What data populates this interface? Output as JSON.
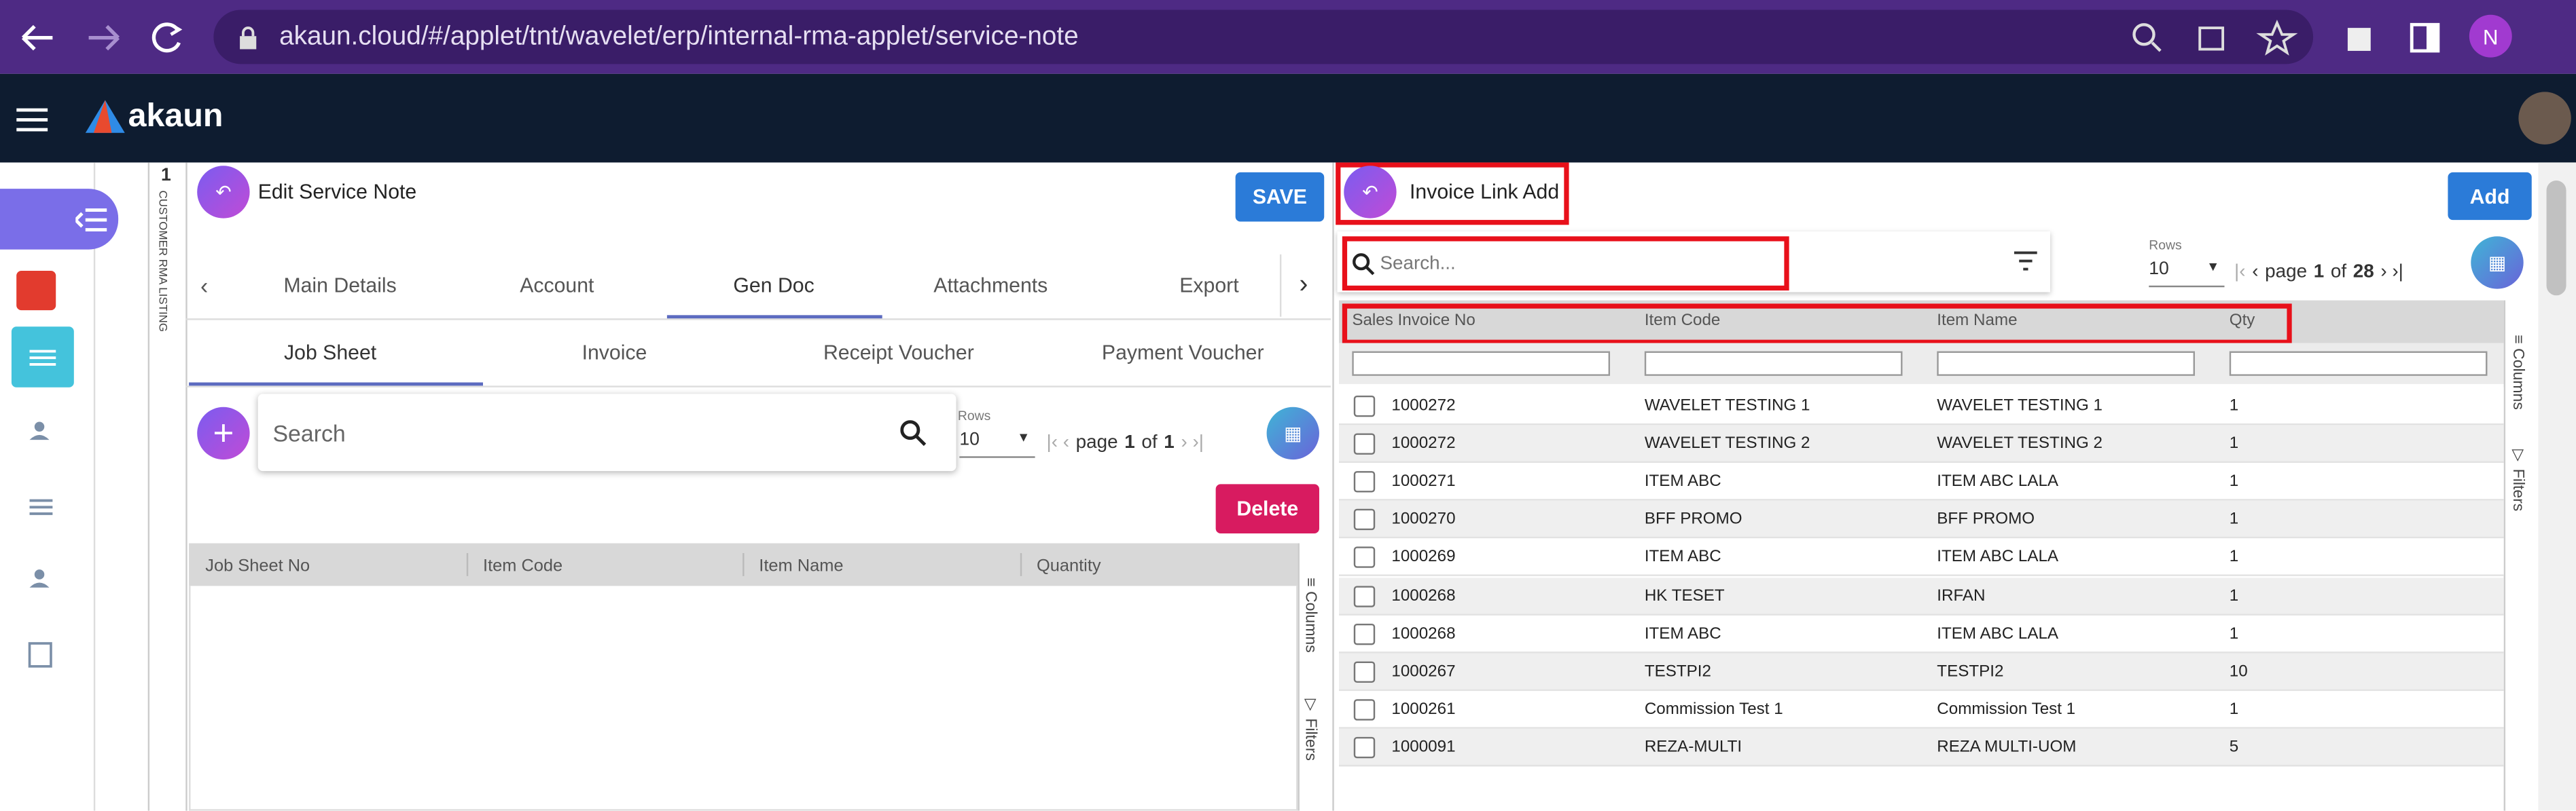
{
  "browser": {
    "url": "akaun.cloud/#/applet/tnt/wavelet/erp/internal-rma-applet/service-note",
    "avatar": "N"
  },
  "app": {
    "logo": "akaun"
  },
  "sidebar": {
    "counter": "1",
    "vertical_label": "CUSTOMER RMA LISTING"
  },
  "left_panel": {
    "title": "Edit Service Note",
    "save": "SAVE",
    "tabs": [
      "Main Details",
      "Account",
      "Gen Doc",
      "Attachments",
      "Export"
    ],
    "subtabs": [
      "Job Sheet",
      "Invoice",
      "Receipt Voucher",
      "Payment Voucher"
    ],
    "search": "Search",
    "rows_label": "Rows",
    "rows_value": "10",
    "pager": {
      "page": "page",
      "current": "1",
      "of": "of",
      "total": "1"
    },
    "delete": "Delete",
    "columns": [
      "Job Sheet No",
      "Item Code",
      "Item Name",
      "Quantity"
    ],
    "side_tabs": [
      "Columns",
      "Filters"
    ]
  },
  "right_panel": {
    "title": "Invoice Link Add",
    "add": "Add",
    "search": "Search...",
    "rows_label": "Rows",
    "rows_value": "10",
    "pager": {
      "page": "page",
      "current": "1",
      "of": "of",
      "total": "28"
    },
    "columns": [
      "Sales Invoice No",
      "Item Code",
      "Item Name",
      "Qty"
    ],
    "rows": [
      [
        "1000272",
        "WAVELET TESTING 1",
        "WAVELET TESTING 1",
        "1"
      ],
      [
        "1000272",
        "WAVELET TESTING 2",
        "WAVELET TESTING 2",
        "1"
      ],
      [
        "1000271",
        "ITEM ABC",
        "ITEM ABC LALA",
        "1"
      ],
      [
        "1000270",
        "BFF PROMO",
        "BFF PROMO",
        "1"
      ],
      [
        "1000269",
        "ITEM ABC",
        "ITEM ABC LALA",
        "1"
      ],
      [
        "1000268",
        "HK TESET",
        "IRFAN",
        "1"
      ],
      [
        "1000268",
        "ITEM ABC",
        "ITEM ABC LALA",
        "1"
      ],
      [
        "1000267",
        "TESTPI2",
        "TESTPI2",
        "10"
      ],
      [
        "1000261",
        "Commission Test 1",
        "Commission Test 1",
        "1"
      ],
      [
        "1000091",
        "REZA-MULTI",
        "REZA MULTI-UOM",
        "5"
      ]
    ],
    "side_tabs": [
      "Columns",
      "Filters"
    ]
  }
}
